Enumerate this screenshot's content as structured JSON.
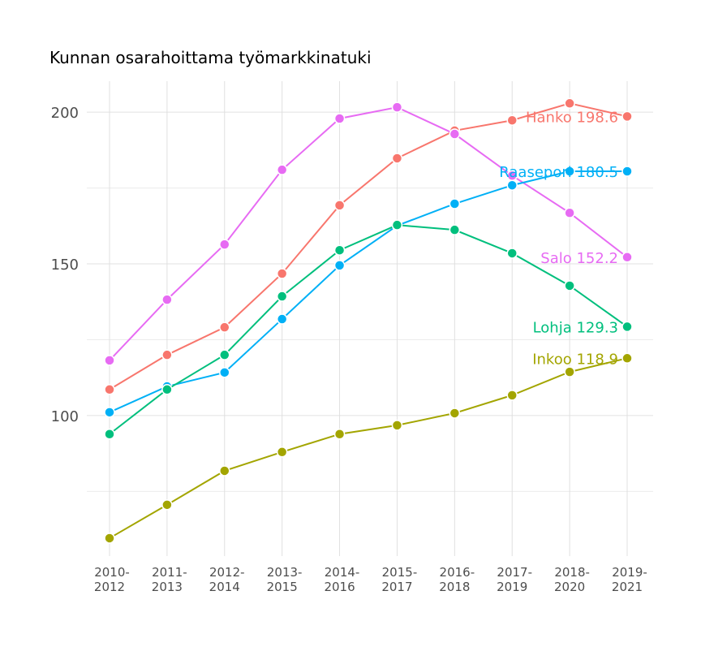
{
  "chart_data": {
    "type": "line",
    "title": "Kunnan osarahoittama työmarkkinatuki",
    "xlabel": "",
    "ylabel": "",
    "categories": [
      "2010-\n2012",
      "2011-\n2013",
      "2012-\n2014",
      "2013-\n2015",
      "2014-\n2016",
      "2015-\n2017",
      "2016-\n2018",
      "2017-\n2019",
      "2018-\n2020",
      "2019-\n2021"
    ],
    "ylim": [
      53.7,
      210.2
    ],
    "yticks": [
      100,
      150,
      200
    ],
    "grid": true,
    "legend": "none (direct labels at line ends)",
    "series": [
      {
        "name": "Hanko",
        "color": "#F8766D",
        "label": "Hanko 198.6",
        "values": [
          108.6,
          120.0,
          129.1,
          146.8,
          169.3,
          184.8,
          193.9,
          197.3,
          202.9,
          198.6
        ]
      },
      {
        "name": "Salo",
        "color": "#E76BF3",
        "label": "Salo 152.2",
        "values": [
          118.2,
          138.2,
          156.4,
          181.0,
          197.9,
          201.6,
          192.8,
          179.1,
          166.8,
          152.2
        ]
      },
      {
        "name": "Raasepori",
        "color": "#00B0F6",
        "label": "Raasepori 180.5",
        "values": [
          101.1,
          109.6,
          114.2,
          131.8,
          149.5,
          162.6,
          169.8,
          175.9,
          180.5,
          180.5
        ]
      },
      {
        "name": "Lohja",
        "color": "#00BF7D",
        "label": "Lohja 129.3",
        "values": [
          93.9,
          108.6,
          120.0,
          139.3,
          154.5,
          162.8,
          161.2,
          153.5,
          142.8,
          129.3
        ]
      },
      {
        "name": "Inkoo",
        "color": "#A3A500",
        "label": "Inkoo 118.9",
        "values": [
          59.6,
          70.6,
          81.8,
          88.0,
          93.9,
          96.8,
          100.8,
          106.7,
          114.4,
          118.9
        ]
      }
    ]
  }
}
